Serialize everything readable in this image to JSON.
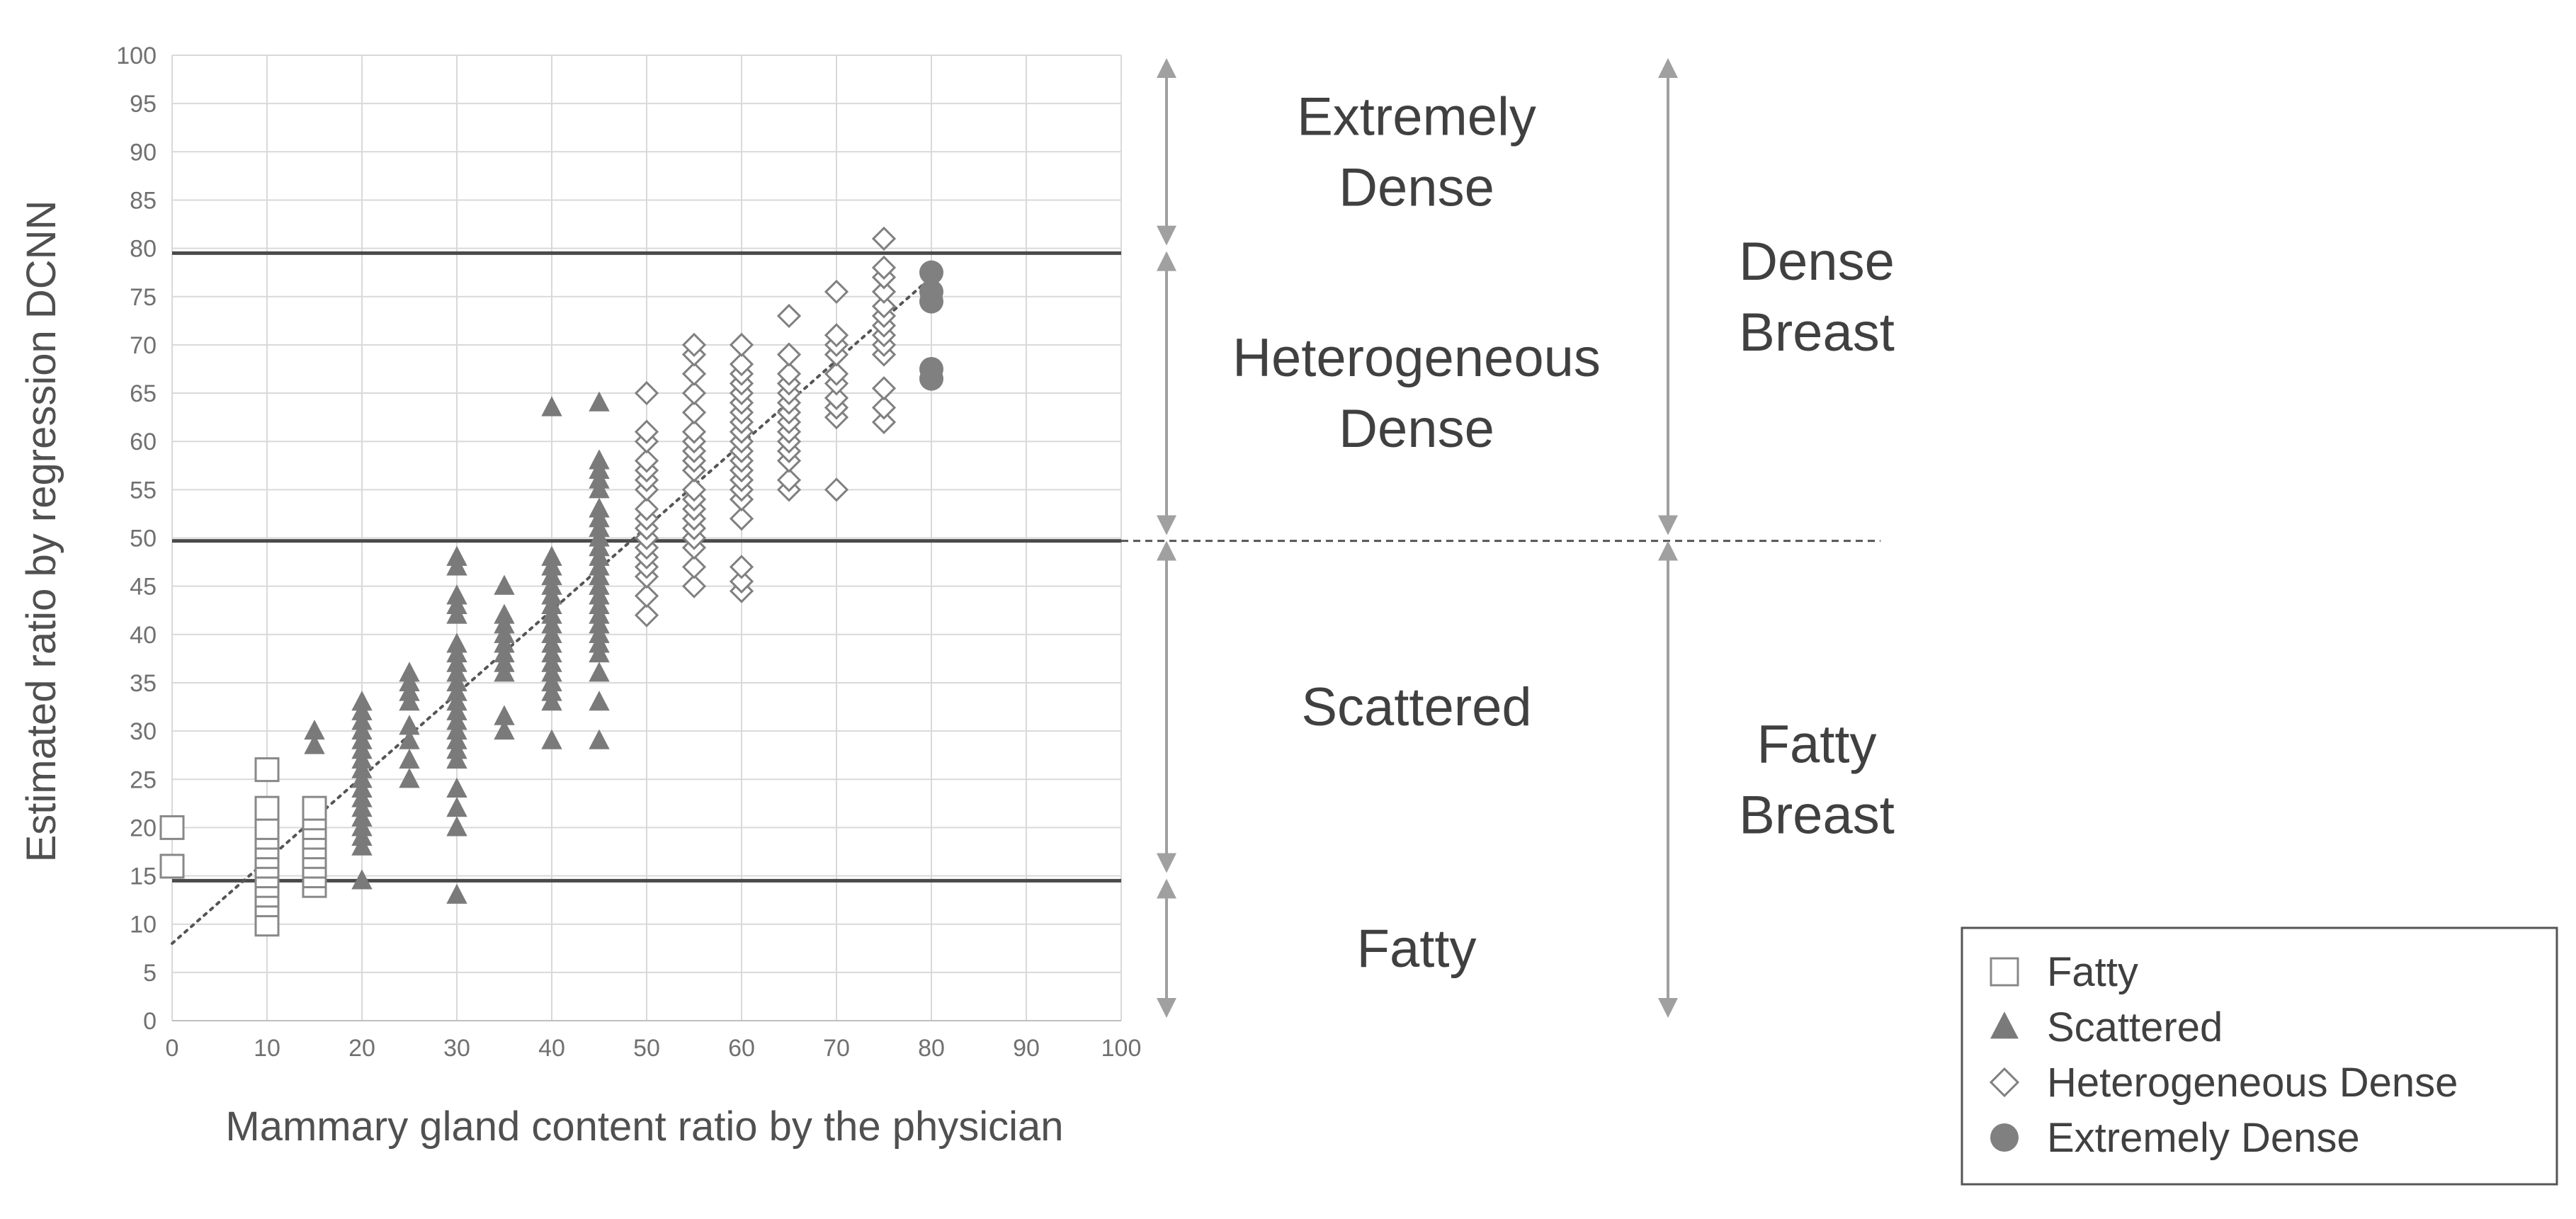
{
  "chart_data": {
    "type": "scatter",
    "title": "",
    "xlabel": "Mammary gland content ratio by the physician",
    "ylabel": "Estimated ratio by regression DCNN",
    "xlim": [
      0,
      100
    ],
    "ylim": [
      0,
      100
    ],
    "xticks": [
      "0",
      "10",
      "20",
      "30",
      "40",
      "50",
      "60",
      "70",
      "80",
      "90",
      "100"
    ],
    "yticks": [
      "0",
      "5",
      "10",
      "15",
      "20",
      "25",
      "30",
      "35",
      "40",
      "45",
      "50",
      "55",
      "60",
      "65",
      "70",
      "75",
      "80",
      "85",
      "90",
      "95",
      "100"
    ],
    "grid": true,
    "legend_position": "bottom-right",
    "thresholds": [
      {
        "y": 14.5,
        "style": "solid"
      },
      {
        "y": 49.7,
        "style": "solid"
      },
      {
        "y": 79.5,
        "style": "solid"
      }
    ],
    "trendline": {
      "style": "dotted",
      "from": [
        0,
        8
      ],
      "to": [
        80,
        77
      ]
    },
    "categories": [
      {
        "label": [
          "Extremely",
          "Dense"
        ],
        "range": [
          80,
          100
        ]
      },
      {
        "label": [
          "Heterogeneous",
          "Dense"
        ],
        "range": [
          50,
          80
        ]
      },
      {
        "label": [
          "Scattered"
        ],
        "range": [
          15,
          50
        ]
      },
      {
        "label": [
          "Fatty"
        ],
        "range": [
          0,
          15
        ]
      }
    ],
    "groups": [
      {
        "label": [
          "Dense",
          "Breast"
        ],
        "range": [
          50,
          100
        ]
      },
      {
        "label": [
          "Fatty",
          "Breast"
        ],
        "range": [
          0,
          50
        ]
      }
    ],
    "series": [
      {
        "name": "Fatty",
        "marker": "square",
        "color": "#888888",
        "points": [
          [
            0,
            16
          ],
          [
            0,
            20
          ],
          [
            10,
            10
          ],
          [
            10,
            12
          ],
          [
            10,
            13
          ],
          [
            10,
            14
          ],
          [
            10,
            15
          ],
          [
            10,
            16
          ],
          [
            10,
            17
          ],
          [
            10,
            18
          ],
          [
            10,
            19
          ],
          [
            10,
            20
          ],
          [
            10,
            22
          ],
          [
            10,
            26
          ],
          [
            15,
            14
          ],
          [
            15,
            15
          ],
          [
            15,
            16
          ],
          [
            15,
            17
          ],
          [
            15,
            18
          ],
          [
            15,
            19
          ],
          [
            15,
            20
          ],
          [
            15,
            21
          ],
          [
            15,
            22
          ]
        ]
      },
      {
        "name": "Scattered",
        "marker": "triangle",
        "color": "#7a7a7a",
        "points": [
          [
            15,
            28.5
          ],
          [
            15,
            30
          ],
          [
            20,
            14.5
          ],
          [
            20,
            18
          ],
          [
            20,
            19
          ],
          [
            20,
            20
          ],
          [
            20,
            21
          ],
          [
            20,
            22
          ],
          [
            20,
            23
          ],
          [
            20,
            24
          ],
          [
            20,
            25
          ],
          [
            20,
            26
          ],
          [
            20,
            27
          ],
          [
            20,
            28
          ],
          [
            20,
            29
          ],
          [
            20,
            30
          ],
          [
            20,
            31
          ],
          [
            20,
            32
          ],
          [
            20,
            33
          ],
          [
            25,
            25
          ],
          [
            25,
            27
          ],
          [
            25,
            29
          ],
          [
            25,
            30.5
          ],
          [
            25,
            33
          ],
          [
            25,
            34
          ],
          [
            25,
            35
          ],
          [
            25,
            36
          ],
          [
            30,
            13
          ],
          [
            30,
            20
          ],
          [
            30,
            22
          ],
          [
            30,
            24
          ],
          [
            30,
            27
          ],
          [
            30,
            28
          ],
          [
            30,
            29
          ],
          [
            30,
            30
          ],
          [
            30,
            31
          ],
          [
            30,
            32
          ],
          [
            30,
            33
          ],
          [
            30,
            34
          ],
          [
            30,
            35
          ],
          [
            30,
            36
          ],
          [
            30,
            37
          ],
          [
            30,
            38
          ],
          [
            30,
            39
          ],
          [
            30,
            42
          ],
          [
            30,
            43
          ],
          [
            30,
            44
          ],
          [
            30,
            47
          ],
          [
            30,
            48
          ],
          [
            35,
            30
          ],
          [
            35,
            31.5
          ],
          [
            35,
            36
          ],
          [
            35,
            37
          ],
          [
            35,
            38
          ],
          [
            35,
            39
          ],
          [
            35,
            40
          ],
          [
            35,
            41
          ],
          [
            35,
            42
          ],
          [
            35,
            45
          ],
          [
            40,
            29
          ],
          [
            40,
            33
          ],
          [
            40,
            34
          ],
          [
            40,
            35
          ],
          [
            40,
            36
          ],
          [
            40,
            37
          ],
          [
            40,
            38
          ],
          [
            40,
            39
          ],
          [
            40,
            40
          ],
          [
            40,
            41
          ],
          [
            40,
            42
          ],
          [
            40,
            43
          ],
          [
            40,
            44
          ],
          [
            40,
            45
          ],
          [
            40,
            46
          ],
          [
            40,
            47
          ],
          [
            40,
            48
          ],
          [
            40,
            63.5
          ],
          [
            45,
            29
          ],
          [
            45,
            33
          ],
          [
            45,
            36
          ],
          [
            45,
            38
          ],
          [
            45,
            39
          ],
          [
            45,
            40
          ],
          [
            45,
            41
          ],
          [
            45,
            42
          ],
          [
            45,
            43
          ],
          [
            45,
            44
          ],
          [
            45,
            45
          ],
          [
            45,
            46
          ],
          [
            45,
            47
          ],
          [
            45,
            48
          ],
          [
            45,
            49
          ],
          [
            45,
            50
          ],
          [
            45,
            51
          ],
          [
            45,
            52
          ],
          [
            45,
            53
          ],
          [
            45,
            55
          ],
          [
            45,
            56
          ],
          [
            45,
            57
          ],
          [
            45,
            58
          ],
          [
            45,
            64
          ]
        ]
      },
      {
        "name": "Heterogeneous Dense",
        "marker": "diamond",
        "color": "#808080",
        "points": [
          [
            50,
            42
          ],
          [
            50,
            44
          ],
          [
            50,
            46
          ],
          [
            50,
            47
          ],
          [
            50,
            48
          ],
          [
            50,
            49
          ],
          [
            50,
            50
          ],
          [
            50,
            51
          ],
          [
            50,
            52
          ],
          [
            50,
            53
          ],
          [
            50,
            55
          ],
          [
            50,
            56
          ],
          [
            50,
            57
          ],
          [
            50,
            58
          ],
          [
            50,
            60
          ],
          [
            50,
            61
          ],
          [
            50,
            65
          ],
          [
            55,
            45
          ],
          [
            55,
            47
          ],
          [
            55,
            49
          ],
          [
            55,
            50
          ],
          [
            55,
            51
          ],
          [
            55,
            52
          ],
          [
            55,
            53
          ],
          [
            55,
            54
          ],
          [
            55,
            55
          ],
          [
            55,
            57
          ],
          [
            55,
            58
          ],
          [
            55,
            59
          ],
          [
            55,
            60
          ],
          [
            55,
            61
          ],
          [
            55,
            63
          ],
          [
            55,
            65
          ],
          [
            55,
            67
          ],
          [
            55,
            69
          ],
          [
            55,
            70
          ],
          [
            60,
            44.5
          ],
          [
            60,
            45.5
          ],
          [
            60,
            47
          ],
          [
            60,
            52
          ],
          [
            60,
            54
          ],
          [
            60,
            55
          ],
          [
            60,
            56
          ],
          [
            60,
            57
          ],
          [
            60,
            58
          ],
          [
            60,
            59
          ],
          [
            60,
            60
          ],
          [
            60,
            61
          ],
          [
            60,
            62
          ],
          [
            60,
            63
          ],
          [
            60,
            64
          ],
          [
            60,
            65
          ],
          [
            60,
            66
          ],
          [
            60,
            67
          ],
          [
            60,
            68
          ],
          [
            60,
            70
          ],
          [
            65,
            55
          ],
          [
            65,
            56
          ],
          [
            65,
            58
          ],
          [
            65,
            59
          ],
          [
            65,
            60
          ],
          [
            65,
            61
          ],
          [
            65,
            62
          ],
          [
            65,
            63
          ],
          [
            65,
            64
          ],
          [
            65,
            65
          ],
          [
            65,
            66
          ],
          [
            65,
            67
          ],
          [
            65,
            69
          ],
          [
            65,
            73
          ],
          [
            70,
            55
          ],
          [
            70,
            62.5
          ],
          [
            70,
            63.5
          ],
          [
            70,
            64.5
          ],
          [
            70,
            66
          ],
          [
            70,
            67
          ],
          [
            70,
            69
          ],
          [
            70,
            70
          ],
          [
            70,
            71
          ],
          [
            70,
            75.5
          ],
          [
            75,
            62
          ],
          [
            75,
            63.5
          ],
          [
            75,
            65.5
          ],
          [
            75,
            69
          ],
          [
            75,
            70
          ],
          [
            75,
            71
          ],
          [
            75,
            72
          ],
          [
            75,
            73
          ],
          [
            75,
            74
          ],
          [
            75,
            75.5
          ],
          [
            75,
            77
          ],
          [
            75,
            78
          ],
          [
            75,
            81
          ]
        ]
      },
      {
        "name": "Extremely Dense",
        "marker": "circle",
        "color": "#808080",
        "points": [
          [
            80,
            66.5
          ],
          [
            80,
            67.5
          ],
          [
            80,
            74.5
          ],
          [
            80,
            75.5
          ],
          [
            80,
            77.5
          ]
        ]
      }
    ]
  }
}
